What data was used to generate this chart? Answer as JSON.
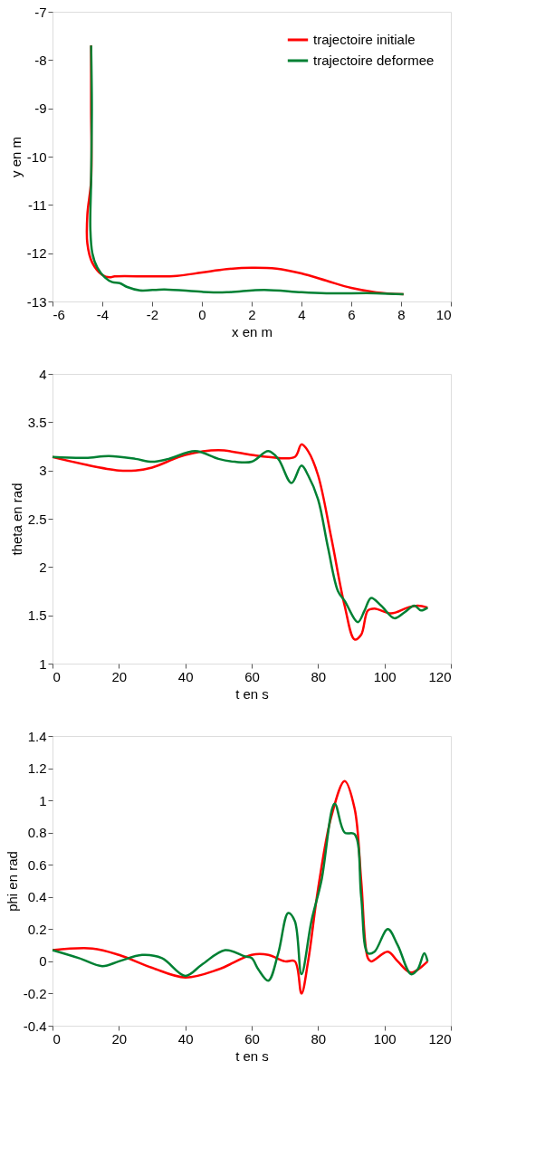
{
  "chart_data": [
    {
      "type": "line",
      "xlabel": "x en m",
      "ylabel": "y en m",
      "xlim": [
        -6,
        10
      ],
      "xticks": [
        -6,
        -4,
        -2,
        0,
        2,
        4,
        6,
        8,
        10
      ],
      "ylim": [
        -13,
        -7
      ],
      "yticks": [
        -13,
        -12,
        -11,
        -10,
        -9,
        -8,
        -7
      ],
      "grid": false,
      "legend": "top right",
      "line_style": "solid",
      "marker": "none",
      "series": [
        {
          "name": "trajectoire initiale",
          "color": "#ff0000",
          "x": [
            -4.45,
            -4.45,
            -4.45,
            -4.6,
            -4.6,
            -4.4,
            -4.0,
            -3.7,
            -3.5,
            -2,
            -1,
            0,
            1,
            2,
            3,
            4,
            5,
            6,
            7,
            8.1
          ],
          "values": [
            -7.7,
            -9,
            -10.5,
            -11.2,
            -11.8,
            -12.2,
            -12.45,
            -12.5,
            -12.48,
            -12.48,
            -12.47,
            -12.4,
            -12.33,
            -12.3,
            -12.32,
            -12.42,
            -12.57,
            -12.72,
            -12.81,
            -12.85
          ]
        },
        {
          "name": "trajectoire deformee",
          "color": "#008033",
          "x": [
            -4.45,
            -4.42,
            -4.45,
            -4.48,
            -4.4,
            -4.2,
            -3.9,
            -3.6,
            -3.3,
            -3,
            -2.5,
            -1.5,
            0,
            1,
            2.5,
            4,
            5,
            7,
            8.1
          ],
          "values": [
            -7.7,
            -9,
            -10.5,
            -11.5,
            -12,
            -12.3,
            -12.5,
            -12.6,
            -12.62,
            -12.7,
            -12.77,
            -12.75,
            -12.8,
            -12.81,
            -12.76,
            -12.81,
            -12.83,
            -12.83,
            -12.85
          ]
        }
      ]
    },
    {
      "type": "line",
      "xlabel": "t en s",
      "ylabel": "theta en rad",
      "xlim": [
        0,
        120
      ],
      "xticks": [
        0,
        20,
        40,
        60,
        80,
        100,
        120
      ],
      "ylim": [
        1,
        4
      ],
      "yticks": [
        1,
        1.5,
        2,
        2.5,
        3,
        3.5,
        4
      ],
      "grid": false,
      "legend": "top right",
      "line_style": "solid",
      "marker": "none",
      "series": [
        {
          "name": "trajectoire initiale",
          "color": "#ff0000",
          "x": [
            0,
            10,
            20,
            25,
            30,
            40,
            50,
            60,
            65,
            73,
            75,
            77,
            80,
            84,
            88,
            91,
            93,
            95,
            97,
            102,
            107,
            110,
            113
          ],
          "values": [
            3.14,
            3.06,
            3.0,
            3.0,
            3.03,
            3.16,
            3.21,
            3.16,
            3.14,
            3.14,
            3.27,
            3.2,
            2.95,
            2.3,
            1.6,
            1.25,
            1.3,
            1.55,
            1.57,
            1.52,
            1.58,
            1.6,
            1.58
          ]
        },
        {
          "name": "trajectoire deformee",
          "color": "#008033",
          "x": [
            0,
            10,
            17,
            25,
            30,
            35,
            43,
            50,
            55,
            60,
            65,
            68,
            72,
            75,
            77,
            80,
            83,
            86,
            88,
            92,
            94,
            96,
            99,
            103,
            106,
            109,
            111,
            113
          ],
          "values": [
            3.14,
            3.13,
            3.15,
            3.12,
            3.09,
            3.12,
            3.2,
            3.12,
            3.09,
            3.09,
            3.2,
            3.12,
            2.87,
            3.05,
            2.95,
            2.7,
            2.2,
            1.75,
            1.65,
            1.43,
            1.55,
            1.68,
            1.6,
            1.47,
            1.53,
            1.6,
            1.55,
            1.58
          ]
        }
      ]
    },
    {
      "type": "line",
      "xlabel": "t en s",
      "ylabel": "phi en rad",
      "xlim": [
        0,
        120
      ],
      "xticks": [
        0,
        20,
        40,
        60,
        80,
        100,
        120
      ],
      "ylim": [
        -0.4,
        1.4
      ],
      "yticks": [
        -0.4,
        -0.2,
        0,
        0.2,
        0.4,
        0.6,
        0.8,
        1,
        1.2,
        1.4
      ],
      "grid": false,
      "legend": "top right",
      "line_style": "solid",
      "marker": "none",
      "series": [
        {
          "name": "trajectoire initiale",
          "color": "#ff0000",
          "x": [
            0,
            12,
            20,
            30,
            40,
            50,
            60,
            65,
            70,
            73,
            75,
            77,
            80,
            84,
            88,
            91,
            93,
            95,
            96,
            101,
            104,
            108,
            113
          ],
          "values": [
            0.07,
            0.08,
            0.04,
            -0.04,
            -0.1,
            -0.05,
            0.04,
            0.04,
            0.0,
            0.0,
            -0.2,
            0.0,
            0.45,
            0.9,
            1.12,
            0.95,
            0.5,
            0.02,
            0.0,
            0.06,
            0.0,
            -0.07,
            0.0
          ]
        },
        {
          "name": "trajectoire deformee",
          "color": "#008033",
          "x": [
            0,
            8,
            15,
            20,
            27,
            33,
            40,
            45,
            52,
            58,
            60,
            62,
            65,
            68,
            71,
            73,
            75,
            78,
            81,
            85,
            88,
            91,
            93,
            95,
            97,
            101,
            104,
            108,
            110,
            112,
            113
          ],
          "values": [
            0.07,
            0.02,
            -0.03,
            0.0,
            0.04,
            0.02,
            -0.09,
            -0.02,
            0.07,
            0.03,
            0.02,
            -0.05,
            -0.12,
            0.05,
            0.3,
            0.25,
            -0.08,
            0.25,
            0.5,
            0.98,
            0.8,
            0.79,
            0.4,
            0.05,
            0.06,
            0.2,
            0.1,
            -0.08,
            -0.05,
            0.05,
            0.0
          ]
        }
      ]
    }
  ]
}
